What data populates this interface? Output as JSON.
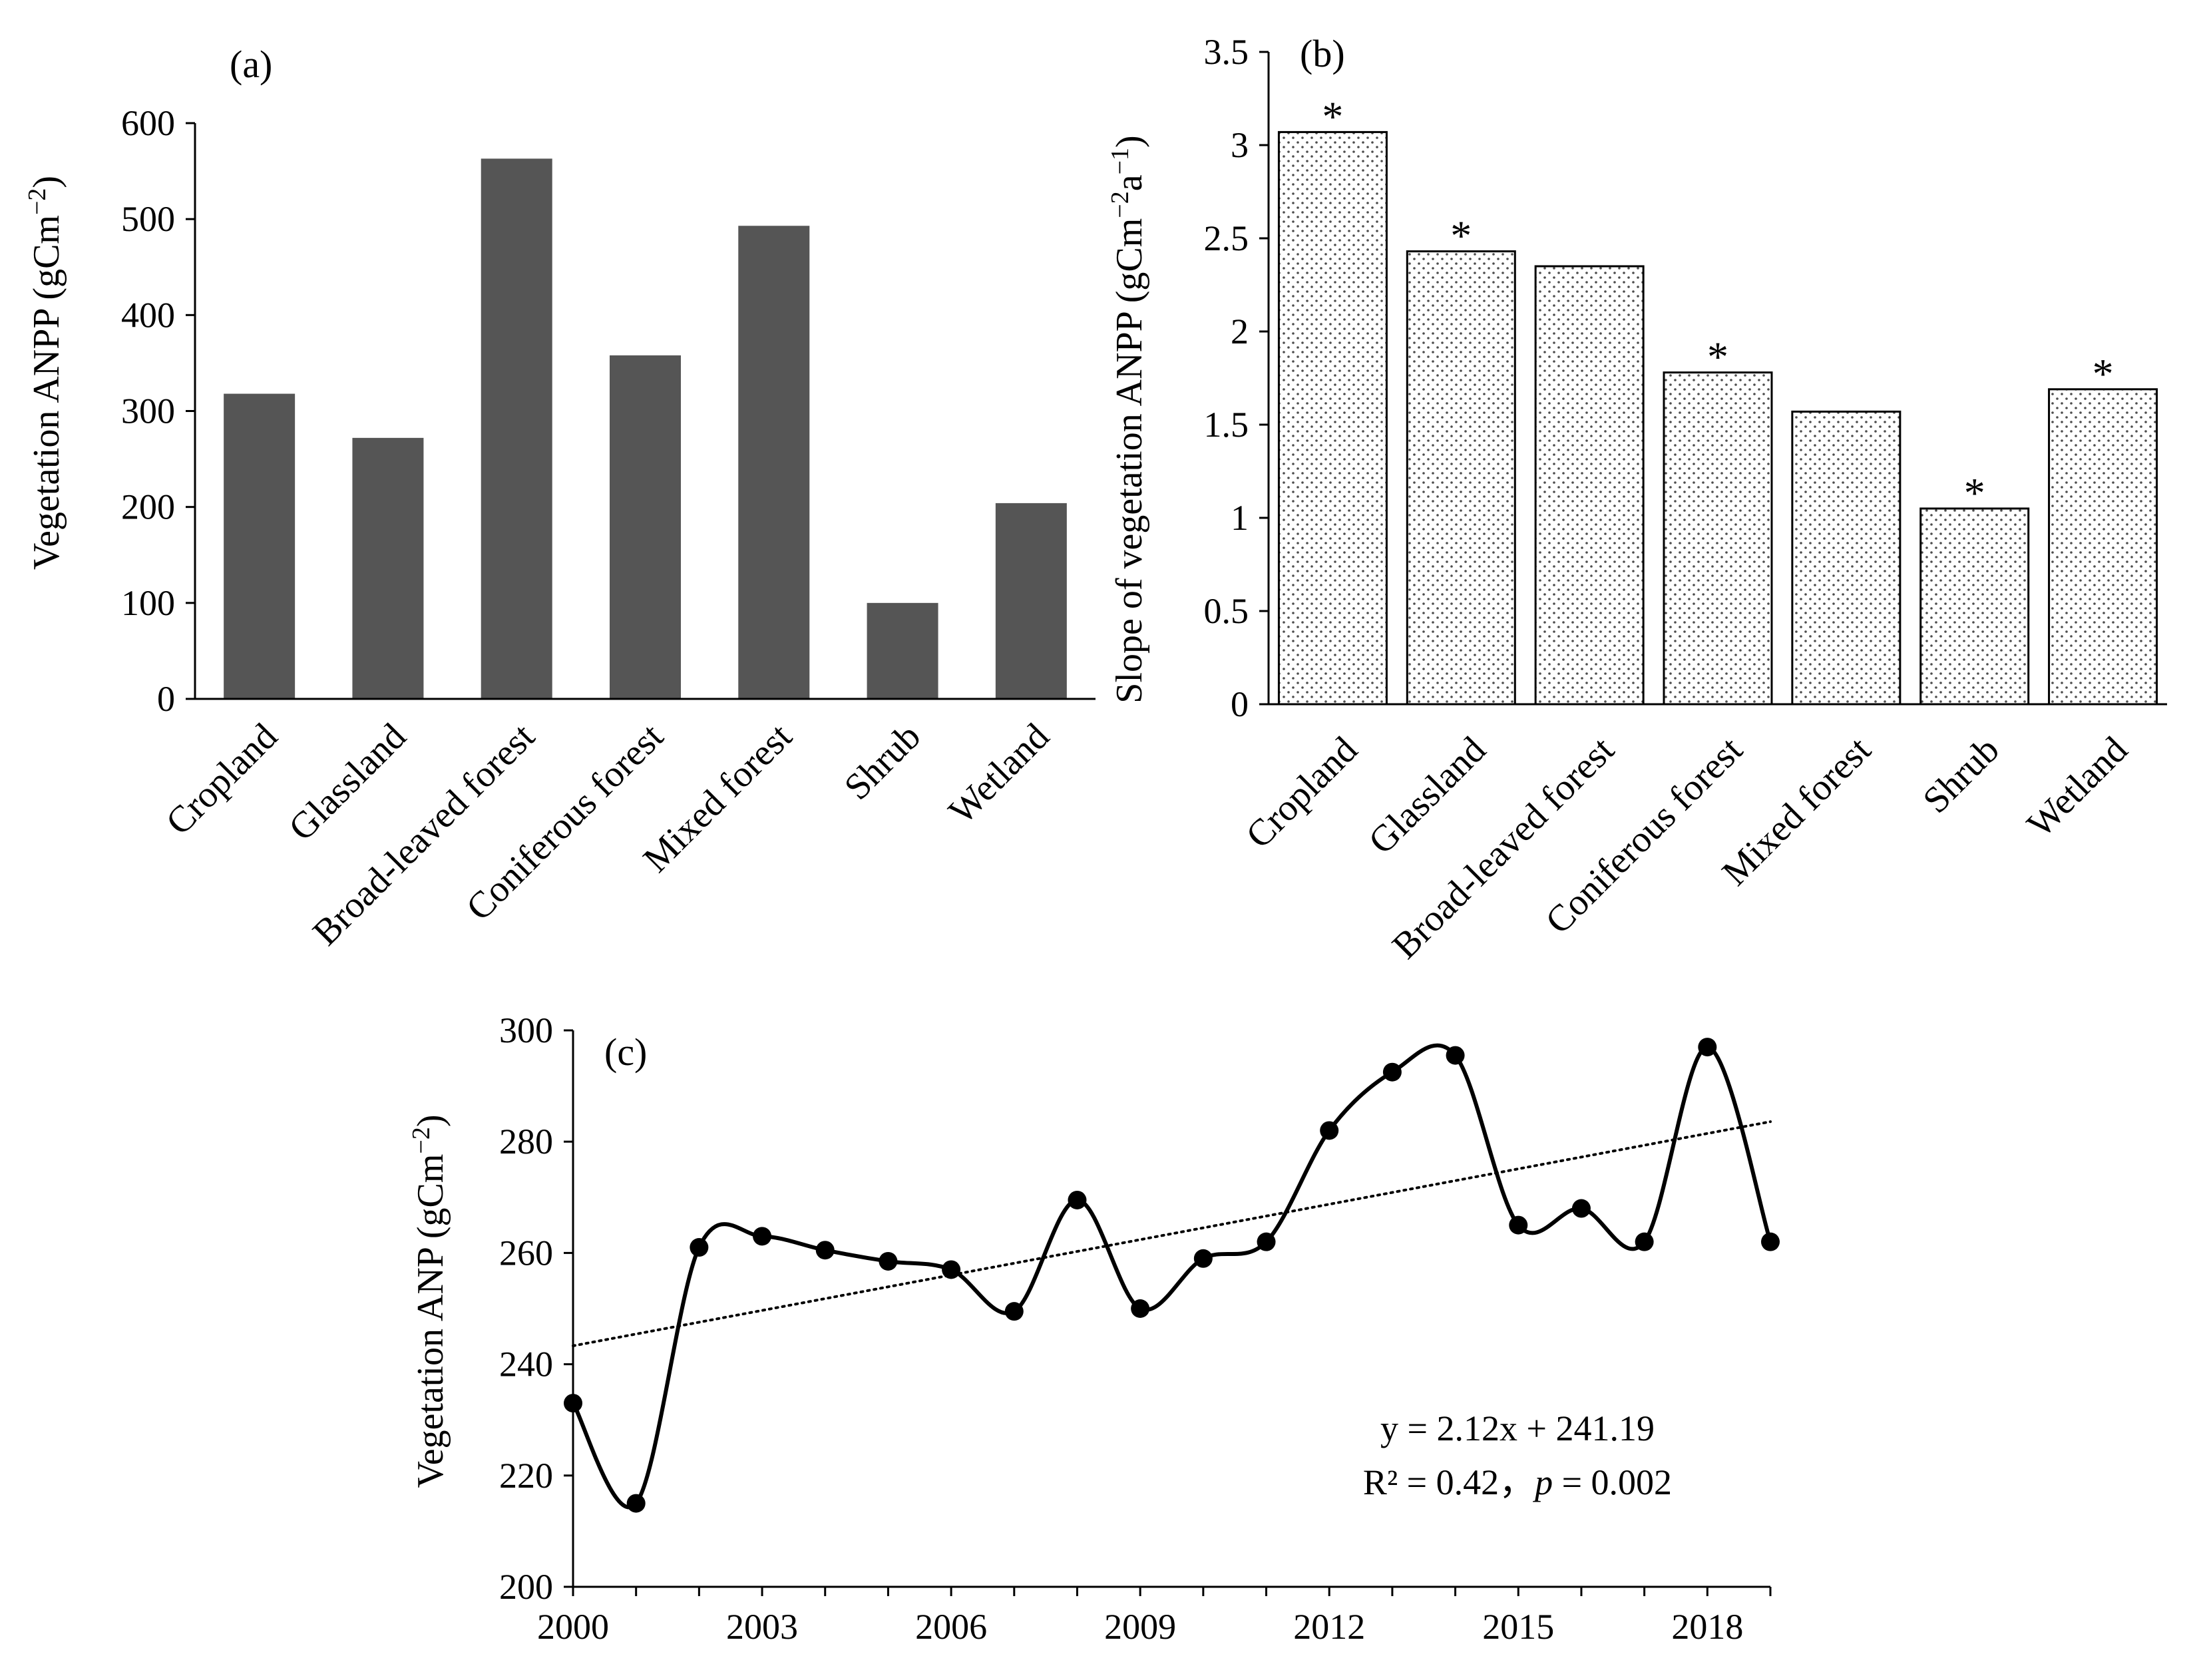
{
  "colors": {
    "bar_a": "#555555",
    "axis": "#000000",
    "dots_b": "#4d4d4d"
  },
  "chart_data": [
    {
      "panel": "(a)",
      "type": "bar",
      "ylabel": "Vegetation ANPP (gCm",
      "ylabel_sup": "−2",
      "ylabel_end": ")",
      "ylim": [
        0,
        600
      ],
      "yticks": [
        "0",
        "100",
        "200",
        "300",
        "400",
        "500",
        "600"
      ],
      "categories": [
        "Cropland",
        "Glassland",
        "Broad-leaved forest",
        "Coniferous forest",
        "Mixed forest",
        "Shrub",
        "Wetland"
      ],
      "values": [
        318,
        272,
        563,
        358,
        493,
        100,
        204
      ]
    },
    {
      "panel": "(b)",
      "type": "bar",
      "ylabel": "Slope of vegetation ANPP (gCm",
      "ylabel_sup": "−2",
      "ylabel_mid": "a",
      "ylabel_sup2": "−1",
      "ylabel_end": ")",
      "ylim": [
        0,
        3.5
      ],
      "yticks": [
        "0",
        "0.5",
        "1",
        "1.5",
        "2",
        "2.5",
        "3",
        "3.5"
      ],
      "categories": [
        "Cropland",
        "Glassland",
        "Broad-leaved forest",
        "Coniferous forest",
        "Mixed forest",
        "Shrub",
        "Wetland"
      ],
      "values": [
        3.07,
        2.43,
        2.35,
        1.78,
        1.57,
        1.05,
        1.69
      ],
      "significant": [
        "*",
        "*",
        "",
        "*",
        "",
        "*",
        "*"
      ]
    },
    {
      "panel": "(c)",
      "type": "line",
      "ylabel": "Vegetation ANP (gCm",
      "ylabel_sup": "−2",
      "ylabel_end": ")",
      "ylim": [
        200,
        300
      ],
      "yticks": [
        "200",
        "220",
        "240",
        "260",
        "280",
        "300"
      ],
      "xticks": [
        "2000",
        "2003",
        "2006",
        "2009",
        "2012",
        "2015",
        "2018"
      ],
      "x": [
        2000,
        2001,
        2002,
        2003,
        2004,
        2005,
        2006,
        2007,
        2008,
        2009,
        2010,
        2011,
        2012,
        2013,
        2014,
        2015,
        2016,
        2017,
        2018,
        2019
      ],
      "y": [
        233,
        215,
        261,
        263,
        260.5,
        258.5,
        257,
        249.5,
        269.5,
        250,
        259,
        262,
        282,
        292.5,
        295.5,
        265,
        268,
        262,
        297,
        262
      ],
      "trend": {
        "intercept": 241.19,
        "slope": 2.12
      },
      "equation": "y = 2.12x + 241.19",
      "r2_prefix": "R² = 0.42，",
      "p_label": "p",
      "p_value": " = 0.002"
    }
  ]
}
